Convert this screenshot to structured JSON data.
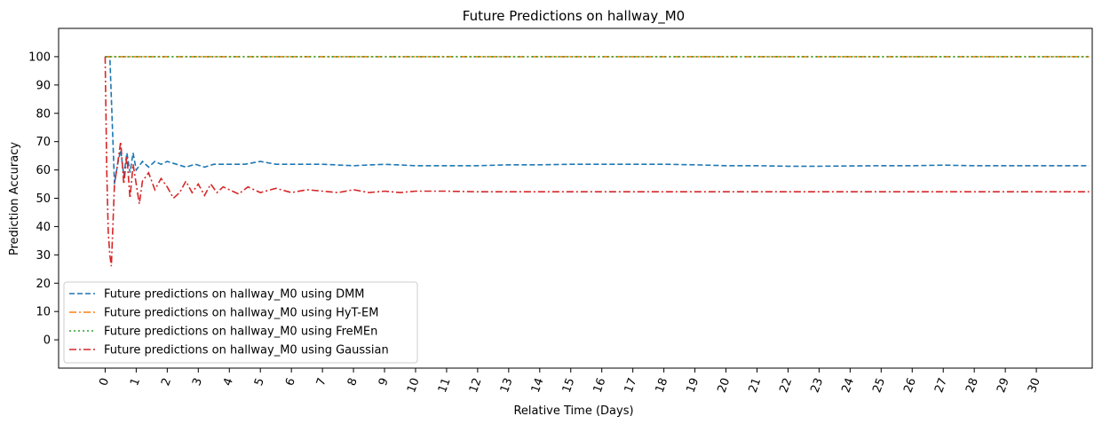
{
  "chart_data": {
    "type": "line",
    "title": "Future Predictions on hallway_M0",
    "xlabel": "Relative Time (Days)",
    "ylabel": "Prediction Accuracy",
    "xlim": [
      -1.5,
      31.8
    ],
    "ylim": [
      -10,
      110
    ],
    "xticks": [
      0,
      1,
      2,
      3,
      4,
      5,
      6,
      7,
      8,
      9,
      10,
      11,
      12,
      13,
      14,
      15,
      16,
      17,
      18,
      19,
      20,
      21,
      22,
      23,
      24,
      25,
      26,
      27,
      28,
      29,
      30
    ],
    "yticks": [
      0,
      10,
      20,
      30,
      40,
      50,
      60,
      70,
      80,
      90,
      100
    ],
    "grid": false,
    "legend_position": "lower-left",
    "series": [
      {
        "name": "Future predictions on hallway_M0 using DMM",
        "color": "#1f77b4",
        "dash": "dashed",
        "x": [
          0,
          0.1,
          0.15,
          0.25,
          0.3,
          0.4,
          0.5,
          0.6,
          0.7,
          0.8,
          0.9,
          1.0,
          1.2,
          1.4,
          1.6,
          1.8,
          2.0,
          2.3,
          2.6,
          2.9,
          3.2,
          3.5,
          4.0,
          4.5,
          5.0,
          5.5,
          6.0,
          6.5,
          7,
          8,
          9,
          10,
          11,
          12,
          13,
          14,
          15,
          16,
          17,
          18,
          19,
          20,
          21,
          22,
          23,
          24,
          25,
          26,
          27,
          28,
          29,
          30,
          31.7
        ],
        "y": [
          100,
          100,
          100,
          70,
          55,
          62,
          67,
          58,
          66,
          59,
          66,
          60,
          63,
          61,
          63,
          62,
          63,
          62,
          61,
          62,
          61,
          62,
          62,
          62,
          63,
          62,
          62,
          62,
          62,
          61.5,
          62,
          61.5,
          61.5,
          61.5,
          61.8,
          61.8,
          62,
          62,
          62,
          62,
          61.8,
          61.5,
          61.5,
          61.3,
          61.3,
          61.4,
          61.5,
          61.5,
          61.7,
          61.5,
          61.5,
          61.5,
          61.5
        ]
      },
      {
        "name": "Future predictions on hallway_M0 using HyT-EM",
        "color": "#ff7f0e",
        "dash": "dashdot",
        "x": [
          0,
          31.7
        ],
        "y": [
          100,
          100
        ]
      },
      {
        "name": "Future predictions on hallway_M0 using FreMEn",
        "color": "#2ca02c",
        "dash": "dotted",
        "x": [
          0,
          31.7
        ],
        "y": [
          100,
          100
        ]
      },
      {
        "name": "Future predictions on hallway_M0 using Gaussian",
        "color": "#d62728",
        "dash": "dashdot",
        "x": [
          0,
          0.05,
          0.1,
          0.15,
          0.2,
          0.3,
          0.4,
          0.5,
          0.6,
          0.7,
          0.8,
          0.9,
          1.0,
          1.1,
          1.2,
          1.4,
          1.6,
          1.8,
          2.0,
          2.2,
          2.4,
          2.6,
          2.8,
          3.0,
          3.2,
          3.4,
          3.6,
          3.8,
          4.0,
          4.3,
          4.6,
          5.0,
          5.5,
          6.0,
          6.5,
          7,
          7.5,
          8,
          8.5,
          9,
          9.5,
          10,
          11,
          12,
          13,
          14,
          15,
          16,
          17,
          18,
          19,
          20,
          21,
          22,
          23,
          24,
          25,
          26,
          27,
          28,
          29,
          30,
          31.7
        ],
        "y": [
          100,
          60,
          38,
          30,
          26,
          55,
          62,
          70,
          55,
          65,
          50,
          62,
          55,
          48,
          56,
          59,
          53,
          57,
          54,
          50,
          52,
          56,
          52,
          55,
          51,
          55,
          52,
          54,
          53,
          51.5,
          54,
          52,
          53.5,
          52,
          53,
          52.5,
          52,
          53,
          52,
          52.5,
          52,
          52.5,
          52.5,
          52.3,
          52.3,
          52.3,
          52.3,
          52.3,
          52.3,
          52.3,
          52.3,
          52.3,
          52.3,
          52.3,
          52.3,
          52.3,
          52.3,
          52.3,
          52.3,
          52.3,
          52.3,
          52.3,
          52.3
        ]
      }
    ]
  }
}
